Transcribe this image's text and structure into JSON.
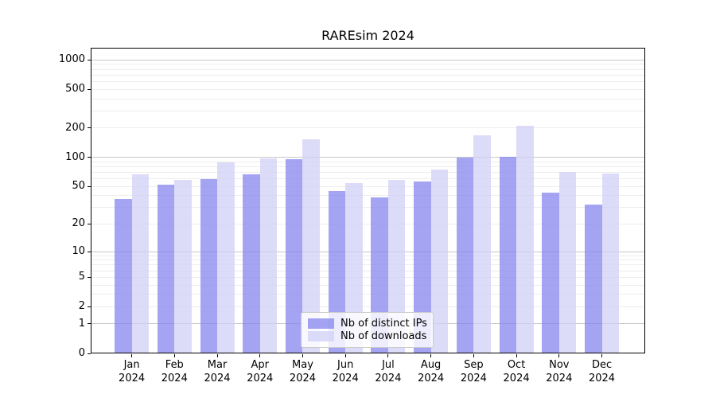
{
  "title": "RAREsim 2024",
  "legend": {
    "position": "lower center",
    "items": [
      {
        "label": "Nb of distinct IPs",
        "color_key": "ips"
      },
      {
        "label": "Nb of downloads",
        "color_key": "downloads"
      }
    ]
  },
  "colors": {
    "ips": "rgba(134,134,238,0.75)",
    "downloads": "rgba(208,208,247,0.75)",
    "grid_major": "#c8c8c8",
    "grid_minor": "#ededed",
    "axis": "#000000",
    "legend_border": "#cccccc"
  },
  "x_axis": {
    "months": [
      "Jan",
      "Feb",
      "Mar",
      "Apr",
      "May",
      "Jun",
      "Jul",
      "Aug",
      "Sep",
      "Oct",
      "Nov",
      "Dec"
    ],
    "year_line": "2024"
  },
  "chart_data": {
    "type": "bar",
    "title": "RAREsim 2024",
    "categories": [
      "Jan 2024",
      "Feb 2024",
      "Mar 2024",
      "Apr 2024",
      "May 2024",
      "Jun 2024",
      "Jul 2024",
      "Aug 2024",
      "Sep 2024",
      "Oct 2024",
      "Nov 2024",
      "Dec 2024"
    ],
    "series": [
      {
        "name": "Nb of distinct IPs",
        "values": [
          37,
          52,
          60,
          67,
          95,
          45,
          38,
          56,
          99,
          102,
          43,
          32
        ]
      },
      {
        "name": "Nb of downloads",
        "values": [
          67,
          58,
          89,
          97,
          154,
          54,
          58,
          75,
          169,
          210,
          71,
          68
        ]
      }
    ],
    "xlabel": "",
    "ylabel": "",
    "yscale": "log1p",
    "ylim": [
      0,
      1330
    ],
    "yticks": [
      0,
      1,
      2,
      5,
      10,
      20,
      50,
      100,
      200,
      500,
      1000
    ],
    "major_gridlines": [
      1,
      10,
      100,
      1000
    ],
    "minor_gridlines": [
      2,
      3,
      4,
      5,
      6,
      7,
      8,
      9,
      20,
      30,
      40,
      50,
      60,
      70,
      80,
      90,
      200,
      300,
      400,
      500,
      600,
      700,
      800,
      900
    ],
    "grid": true,
    "legend_position": "lower center"
  }
}
